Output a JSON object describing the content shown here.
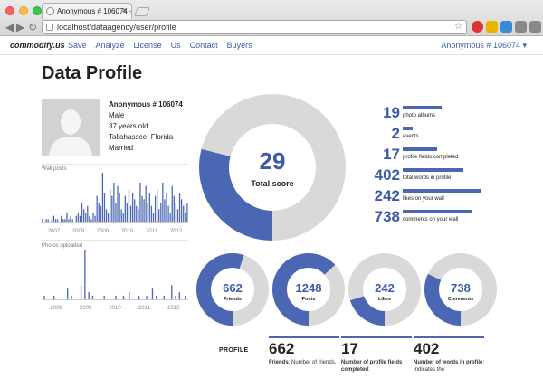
{
  "browser": {
    "tab_title": "Anonymous # 106074 – Profi",
    "tab_close": "✕",
    "url": "localhost/dataagency/user/profile",
    "back": "◀",
    "forward": "▶",
    "reload": "↻",
    "star": "☆"
  },
  "nav": {
    "brand": "commodify.us",
    "links": [
      "Save",
      "Analyze",
      "License",
      "Us",
      "Contact",
      "Buyers"
    ],
    "user_menu": "Anonymous # 106074 ▾"
  },
  "page": {
    "title": "Data Profile"
  },
  "profile": {
    "name": "Anonymous # 106074",
    "gender": "Male",
    "age": "37 years old",
    "location": "Tallahassee, Florida",
    "status": "Married"
  },
  "wall_posts": {
    "label": "Wall posts",
    "years": [
      "2007",
      "2008",
      "2009",
      "2010",
      "2011",
      "2012"
    ],
    "values": [
      1,
      0,
      1,
      1,
      0,
      1,
      2,
      1,
      1,
      0,
      2,
      1,
      1,
      3,
      1,
      2,
      1,
      0,
      2,
      3,
      2,
      6,
      4,
      3,
      5,
      2,
      1,
      3,
      2,
      8,
      6,
      5,
      15,
      9,
      4,
      3,
      10,
      8,
      12,
      6,
      11,
      9,
      4,
      3,
      8,
      6,
      10,
      5,
      9,
      7,
      5,
      4,
      12,
      8,
      7,
      11,
      6,
      9,
      5,
      3,
      8,
      10,
      4,
      6,
      12,
      7,
      9,
      5,
      3,
      11,
      8,
      6,
      4,
      9,
      7,
      5,
      3,
      6
    ]
  },
  "photos": {
    "label": "Photos uploaded",
    "years": [
      "2008",
      "2009",
      "2010",
      "2011",
      "2012"
    ],
    "values": [
      0,
      1,
      0,
      0,
      0,
      0,
      1,
      0,
      0,
      0,
      0,
      0,
      0,
      3,
      0,
      1,
      0,
      0,
      0,
      0,
      4,
      0,
      14,
      0,
      2,
      0,
      1,
      0,
      0,
      0,
      0,
      0,
      1,
      0,
      0,
      0,
      0,
      0,
      1,
      0,
      0,
      0,
      1,
      0,
      0,
      2,
      0,
      0,
      0,
      0,
      1,
      0,
      0,
      0,
      1,
      0,
      0,
      3,
      0,
      1,
      0,
      0,
      0,
      1,
      0,
      0,
      0,
      4,
      0,
      1,
      0,
      2,
      0,
      0,
      1,
      0
    ]
  },
  "total_score": {
    "value": "29",
    "label": "Total score",
    "fraction": 0.29
  },
  "stats": [
    {
      "value": "19",
      "label": "photo albums",
      "bar": 0.45
    },
    {
      "value": "2",
      "label": "events",
      "bar": 0.12
    },
    {
      "value": "17",
      "label": "profile fields completed",
      "bar": 0.4
    },
    {
      "value": "402",
      "label": "total words in profile",
      "bar": 0.7
    },
    {
      "value": "242",
      "label": "likes on your wall",
      "bar": 0.9
    },
    {
      "value": "738",
      "label": "comments on your wall",
      "bar": 0.8
    }
  ],
  "small_donuts": [
    {
      "value": "662",
      "label": "Friends",
      "fraction": 0.55
    },
    {
      "value": "1248",
      "label": "Posts",
      "fraction": 0.63
    },
    {
      "value": "242",
      "label": "Likes",
      "fraction": 0.2
    },
    {
      "value": "738",
      "label": "Comments",
      "fraction": 0.32
    }
  ],
  "bottom": {
    "section_label": "PROFILE",
    "cols": [
      {
        "num": "662",
        "bold": "Friends",
        "rest": ": Number of friends."
      },
      {
        "num": "17",
        "bold": "Number of profile fields completed",
        "rest": ":"
      },
      {
        "num": "402",
        "bold": "Number of words in profile",
        "rest": ": Indicates the"
      }
    ]
  },
  "colors": {
    "accent": "#4b66b3",
    "track": "#d9d9d9",
    "text_blue": "#3e5aa9"
  }
}
